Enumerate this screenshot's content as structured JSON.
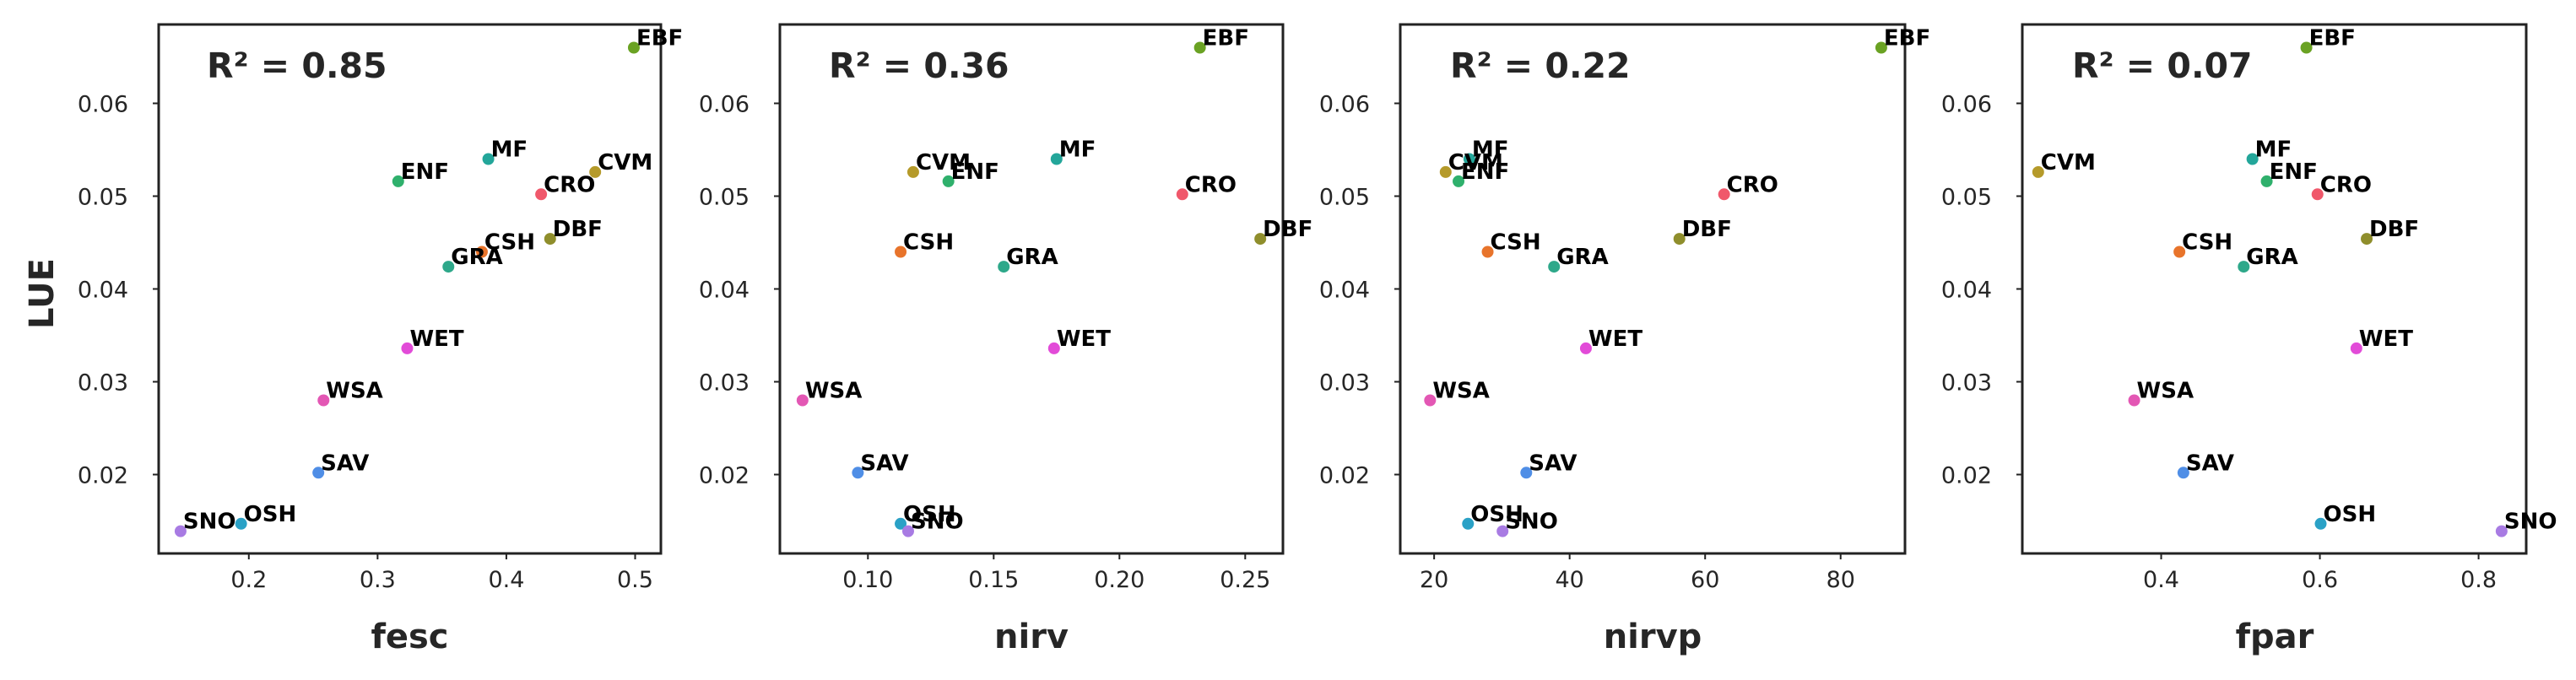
{
  "figure": {
    "ylabel": "LUE"
  },
  "colors": {
    "EBF": "#6aa223",
    "MF": "#23a69a",
    "ENF": "#2fb06c",
    "CVM": "#b59a2a",
    "CRO": "#f0586b",
    "CSH": "#e8742b",
    "DBF": "#8f8e2c",
    "GRA": "#2ea88a",
    "WET": "#e24bd8",
    "WSA": "#e357b4",
    "SAV": "#4f8ee6",
    "OSH": "#2aa1c6",
    "SNO": "#a87be3"
  },
  "chart_data": [
    {
      "type": "scatter",
      "xlabel": "fesc",
      "annotation": "R² = 0.85",
      "xlim": [
        0.13,
        0.52
      ],
      "ylim": [
        0.0115,
        0.0685
      ],
      "xticks": [
        0.2,
        0.3,
        0.4,
        0.5
      ],
      "xtick_labels": [
        "0.2",
        "0.3",
        "0.4",
        "0.5"
      ],
      "yticks": [
        0.02,
        0.03,
        0.04,
        0.05,
        0.06
      ],
      "ytick_labels": [
        "0.02",
        "0.03",
        "0.04",
        "0.05",
        "0.06"
      ],
      "points": [
        {
          "label": "EBF",
          "x": 0.499,
          "y": 0.066
        },
        {
          "label": "MF",
          "x": 0.386,
          "y": 0.054
        },
        {
          "label": "ENF",
          "x": 0.316,
          "y": 0.0516
        },
        {
          "label": "CVM",
          "x": 0.469,
          "y": 0.0526
        },
        {
          "label": "CRO",
          "x": 0.427,
          "y": 0.0502
        },
        {
          "label": "CSH",
          "x": 0.381,
          "y": 0.044
        },
        {
          "label": "DBF",
          "x": 0.434,
          "y": 0.0454
        },
        {
          "label": "GRA",
          "x": 0.355,
          "y": 0.0424
        },
        {
          "label": "WET",
          "x": 0.323,
          "y": 0.0336
        },
        {
          "label": "WSA",
          "x": 0.258,
          "y": 0.028
        },
        {
          "label": "SAV",
          "x": 0.254,
          "y": 0.0202
        },
        {
          "label": "OSH",
          "x": 0.194,
          "y": 0.0147
        },
        {
          "label": "SNO",
          "x": 0.147,
          "y": 0.0139
        }
      ]
    },
    {
      "type": "scatter",
      "xlabel": "nirv",
      "annotation": "R² = 0.36",
      "xlim": [
        0.065,
        0.265
      ],
      "ylim": [
        0.0115,
        0.0685
      ],
      "xticks": [
        0.1,
        0.15,
        0.2,
        0.25
      ],
      "xtick_labels": [
        "0.10",
        "0.15",
        "0.20",
        "0.25"
      ],
      "yticks": [
        0.02,
        0.03,
        0.04,
        0.05,
        0.06
      ],
      "ytick_labels": [
        "0.02",
        "0.03",
        "0.04",
        "0.05",
        "0.06"
      ],
      "points": [
        {
          "label": "EBF",
          "x": 0.232,
          "y": 0.066
        },
        {
          "label": "MF",
          "x": 0.175,
          "y": 0.054
        },
        {
          "label": "CVM",
          "x": 0.118,
          "y": 0.0526
        },
        {
          "label": "ENF",
          "x": 0.132,
          "y": 0.0516
        },
        {
          "label": "CRO",
          "x": 0.225,
          "y": 0.0502
        },
        {
          "label": "DBF",
          "x": 0.256,
          "y": 0.0454
        },
        {
          "label": "CSH",
          "x": 0.113,
          "y": 0.044
        },
        {
          "label": "GRA",
          "x": 0.154,
          "y": 0.0424
        },
        {
          "label": "WET",
          "x": 0.174,
          "y": 0.0336
        },
        {
          "label": "WSA",
          "x": 0.074,
          "y": 0.028
        },
        {
          "label": "SAV",
          "x": 0.096,
          "y": 0.0202
        },
        {
          "label": "OSH",
          "x": 0.113,
          "y": 0.0147
        },
        {
          "label": "SNO",
          "x": 0.116,
          "y": 0.0139
        }
      ]
    },
    {
      "type": "scatter",
      "xlabel": "nirvp",
      "annotation": "R² = 0.22",
      "xlim": [
        15.0,
        89.5
      ],
      "ylim": [
        0.0115,
        0.0685
      ],
      "xticks": [
        20,
        40,
        60,
        80
      ],
      "xtick_labels": [
        "20",
        "40",
        "60",
        "80"
      ],
      "yticks": [
        0.02,
        0.03,
        0.04,
        0.05,
        0.06
      ],
      "ytick_labels": [
        "0.02",
        "0.03",
        "0.04",
        "0.05",
        "0.06"
      ],
      "points": [
        {
          "label": "EBF",
          "x": 86.0,
          "y": 0.066
        },
        {
          "label": "MF",
          "x": 25.2,
          "y": 0.054
        },
        {
          "label": "CVM",
          "x": 21.7,
          "y": 0.0526
        },
        {
          "label": "ENF",
          "x": 23.6,
          "y": 0.0516
        },
        {
          "label": "CRO",
          "x": 62.8,
          "y": 0.0502
        },
        {
          "label": "DBF",
          "x": 56.2,
          "y": 0.0454
        },
        {
          "label": "CSH",
          "x": 27.9,
          "y": 0.044
        },
        {
          "label": "GRA",
          "x": 37.7,
          "y": 0.0424
        },
        {
          "label": "WET",
          "x": 42.4,
          "y": 0.0336
        },
        {
          "label": "WSA",
          "x": 19.4,
          "y": 0.028
        },
        {
          "label": "SAV",
          "x": 33.6,
          "y": 0.0202
        },
        {
          "label": "OSH",
          "x": 25.0,
          "y": 0.0147
        },
        {
          "label": "SNO",
          "x": 30.1,
          "y": 0.0139
        }
      ]
    },
    {
      "type": "scatter",
      "xlabel": "fpar",
      "annotation": "R² = 0.07",
      "xlim": [
        0.225,
        0.86
      ],
      "ylim": [
        0.0115,
        0.0685
      ],
      "xticks": [
        0.4,
        0.6,
        0.8
      ],
      "xtick_labels": [
        "0.4",
        "0.6",
        "0.8"
      ],
      "yticks": [
        0.02,
        0.03,
        0.04,
        0.05,
        0.06
      ],
      "ytick_labels": [
        "0.02",
        "0.03",
        "0.04",
        "0.05",
        "0.06"
      ],
      "points": [
        {
          "label": "EBF",
          "x": 0.583,
          "y": 0.066
        },
        {
          "label": "CVM",
          "x": 0.245,
          "y": 0.0526
        },
        {
          "label": "MF",
          "x": 0.515,
          "y": 0.054
        },
        {
          "label": "ENF",
          "x": 0.533,
          "y": 0.0516
        },
        {
          "label": "CRO",
          "x": 0.597,
          "y": 0.0502
        },
        {
          "label": "DBF",
          "x": 0.659,
          "y": 0.0454
        },
        {
          "label": "CSH",
          "x": 0.423,
          "y": 0.044
        },
        {
          "label": "GRA",
          "x": 0.504,
          "y": 0.0424
        },
        {
          "label": "WET",
          "x": 0.646,
          "y": 0.0336
        },
        {
          "label": "WSA",
          "x": 0.366,
          "y": 0.028
        },
        {
          "label": "SAV",
          "x": 0.428,
          "y": 0.0202
        },
        {
          "label": "OSH",
          "x": 0.601,
          "y": 0.0147
        },
        {
          "label": "SNO",
          "x": 0.829,
          "y": 0.0139
        }
      ]
    }
  ]
}
